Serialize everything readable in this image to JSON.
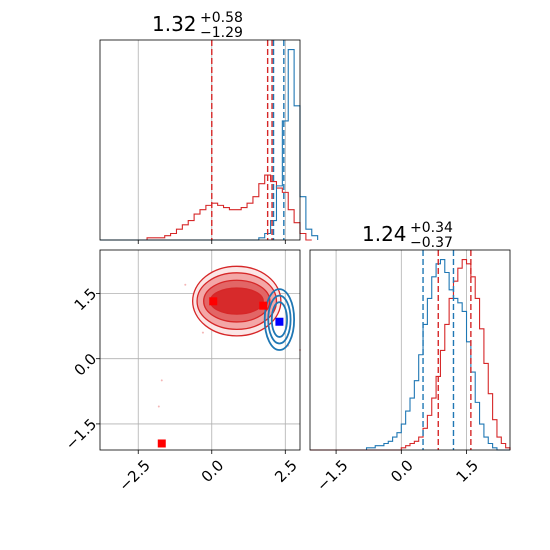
{
  "chart_data": [
    {
      "type": "histogram",
      "panel": "top-left marginal",
      "title": {
        "value": "1.32",
        "plus": "+0.58",
        "minus": "−1.29"
      },
      "xlim": [
        -3.8,
        3.0
      ],
      "grid": true,
      "series": [
        {
          "color": "#d62728",
          "bins_start": -3.8,
          "bin_width": 0.2,
          "counts": [
            0,
            0,
            0,
            0,
            0,
            0,
            0,
            0,
            1,
            1,
            1,
            2,
            3,
            5,
            7,
            9,
            12,
            14,
            16,
            17,
            16,
            15,
            14,
            14,
            15,
            17,
            20,
            26,
            30,
            27,
            24,
            22,
            14,
            8,
            3,
            0
          ]
        },
        {
          "color": "#1f77b4",
          "bins_start": -3.8,
          "bin_width": 0.2,
          "counts": [
            0,
            0,
            0,
            0,
            0,
            0,
            0,
            0,
            0,
            0,
            0,
            0,
            0,
            0,
            0,
            0,
            0,
            0,
            0,
            0,
            0,
            0,
            0,
            0,
            0,
            0,
            0,
            1,
            3,
            9,
            25,
            55,
            88,
            62,
            20,
            5,
            2
          ]
        }
      ],
      "vlines": [
        {
          "color": "#d62728",
          "x": 0.0
        },
        {
          "color": "#d62728",
          "x": 1.9
        },
        {
          "color": "#d62728",
          "x": 2.05
        },
        {
          "color": "#1f77b4",
          "x": 2.1
        },
        {
          "color": "#1f77b4",
          "x": 2.45
        }
      ]
    },
    {
      "type": "contour",
      "panel": "bottom-left 2D",
      "xlim": [
        -3.8,
        3.0
      ],
      "ylim": [
        -2.1,
        2.5
      ],
      "x_ticks": [
        -2.5,
        0.0,
        2.5
      ],
      "y_ticks": [
        -1.5,
        0.0,
        1.5
      ],
      "x_tick_labels": [
        "−2.5",
        "0.0",
        "2.5"
      ],
      "y_tick_labels": [
        "−1.5",
        "0.0",
        "1.5"
      ],
      "grid": true,
      "red_contours": {
        "color": "#d62728",
        "centers": [
          [
            0.2,
            1.35
          ],
          [
            1.5,
            1.3
          ]
        ],
        "levels": [
          [
            3.0,
            0.8
          ],
          [
            2.7,
            0.65
          ],
          [
            2.25,
            0.48
          ],
          [
            1.8,
            0.3
          ]
        ]
      },
      "blue_contours": {
        "color": "#1f77b4",
        "center": [
          2.3,
          0.9
        ],
        "levels": [
          [
            0.5,
            0.7
          ],
          [
            0.38,
            0.55
          ],
          [
            0.26,
            0.4
          ]
        ]
      },
      "scatter_points": [
        [
          -1.7,
          -0.5
        ],
        [
          -1.8,
          -1.1
        ],
        [
          -0.5,
          1.0
        ],
        [
          -0.9,
          1.7
        ],
        [
          3.0,
          0.2
        ],
        [
          2.6,
          0.3
        ],
        [
          -0.3,
          0.6
        ]
      ],
      "markers": [
        {
          "color": "#ff0000",
          "x": 0.05,
          "y": 1.32,
          "shape": "square"
        },
        {
          "color": "#ff0000",
          "x": 1.75,
          "y": 1.22,
          "shape": "square"
        },
        {
          "color": "#0000ff",
          "x": 2.3,
          "y": 0.85,
          "shape": "square"
        },
        {
          "color": "#ff0000",
          "x": -1.7,
          "y": -1.95,
          "shape": "square"
        }
      ]
    },
    {
      "type": "histogram",
      "panel": "bottom-right marginal",
      "title": {
        "value": "1.24",
        "plus": "+0.34",
        "minus": "−0.37"
      },
      "xlim": [
        -2.1,
        2.5
      ],
      "x_ticks": [
        -1.5,
        0.0,
        1.5
      ],
      "x_tick_labels": [
        "−1.5",
        "0.0",
        "1.5"
      ],
      "grid": true,
      "series": [
        {
          "color": "#1f77b4",
          "bins_start": -2.1,
          "bin_width": 0.1,
          "counts": [
            0,
            0,
            0,
            0,
            0,
            0,
            0,
            0,
            0,
            0,
            0,
            0,
            0,
            1,
            1,
            2,
            2,
            3,
            4,
            6,
            8,
            12,
            18,
            24,
            32,
            44,
            58,
            70,
            80,
            86,
            88,
            82,
            74,
            70,
            68,
            64,
            50,
            36,
            22,
            12,
            6,
            3,
            1,
            0,
            0,
            0
          ]
        },
        {
          "color": "#d62728",
          "bins_start": -2.1,
          "bin_width": 0.1,
          "counts": [
            0,
            0,
            0,
            0,
            0,
            0,
            0,
            0,
            0,
            0,
            0,
            0,
            0,
            0,
            0,
            0,
            0,
            0,
            0,
            0,
            0,
            1,
            2,
            3,
            4,
            6,
            10,
            16,
            24,
            34,
            46,
            58,
            70,
            78,
            84,
            88,
            86,
            80,
            70,
            56,
            40,
            26,
            14,
            6,
            3,
            1
          ]
        }
      ],
      "vlines": [
        {
          "color": "#1f77b4",
          "x": 0.5
        },
        {
          "color": "#1f77b4",
          "x": 1.2
        },
        {
          "color": "#d62728",
          "x": 0.85
        },
        {
          "color": "#d62728",
          "x": 1.6
        }
      ]
    }
  ]
}
